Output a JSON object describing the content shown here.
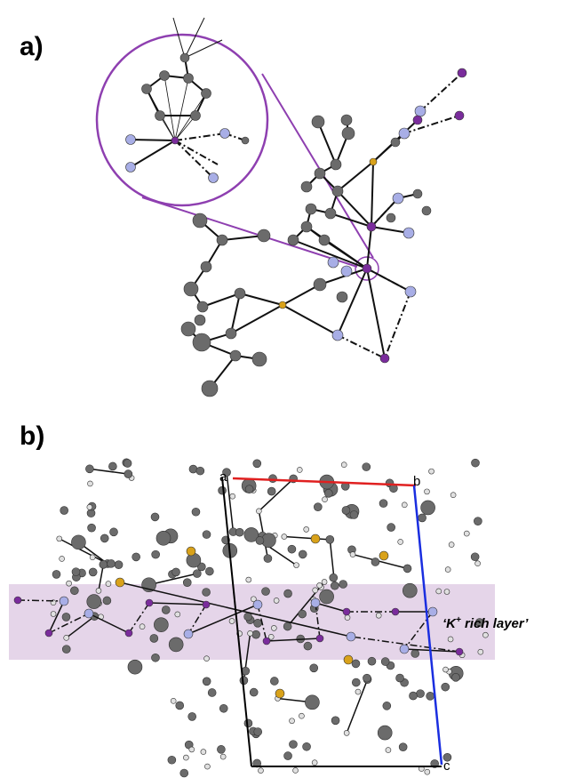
{
  "panel_a": {
    "label": "a)"
  },
  "panel_b": {
    "label": "b)",
    "axes": {
      "a": "a",
      "b": "b",
      "c": "c"
    },
    "annotation": {
      "prefix": "‘K",
      "superscript": "+",
      "suffix": " rich layer’"
    }
  }
}
